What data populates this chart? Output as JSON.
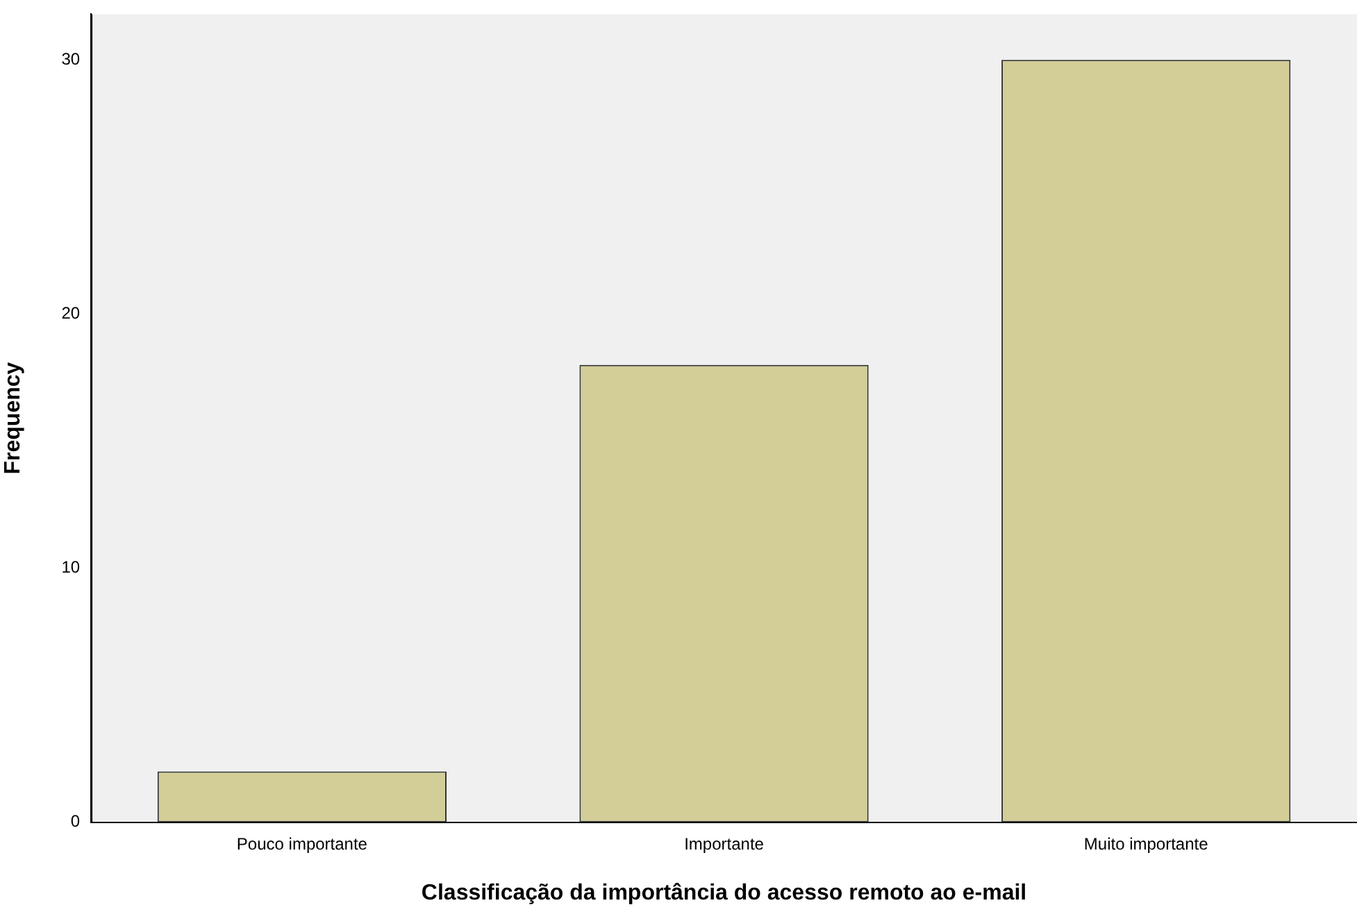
{
  "chart_data": {
    "type": "bar",
    "xlabel": "Classificação da importância do acesso remoto ao e-mail",
    "ylabel": "Frequency",
    "categories": [
      "Pouco importante",
      "Importante",
      "Muito importante"
    ],
    "values": [
      2,
      18,
      30
    ],
    "color": "#d3ce97",
    "ylim": [
      0,
      31.8
    ],
    "yticks": [
      0,
      10,
      20,
      30
    ],
    "grid": false,
    "legend": false
  }
}
